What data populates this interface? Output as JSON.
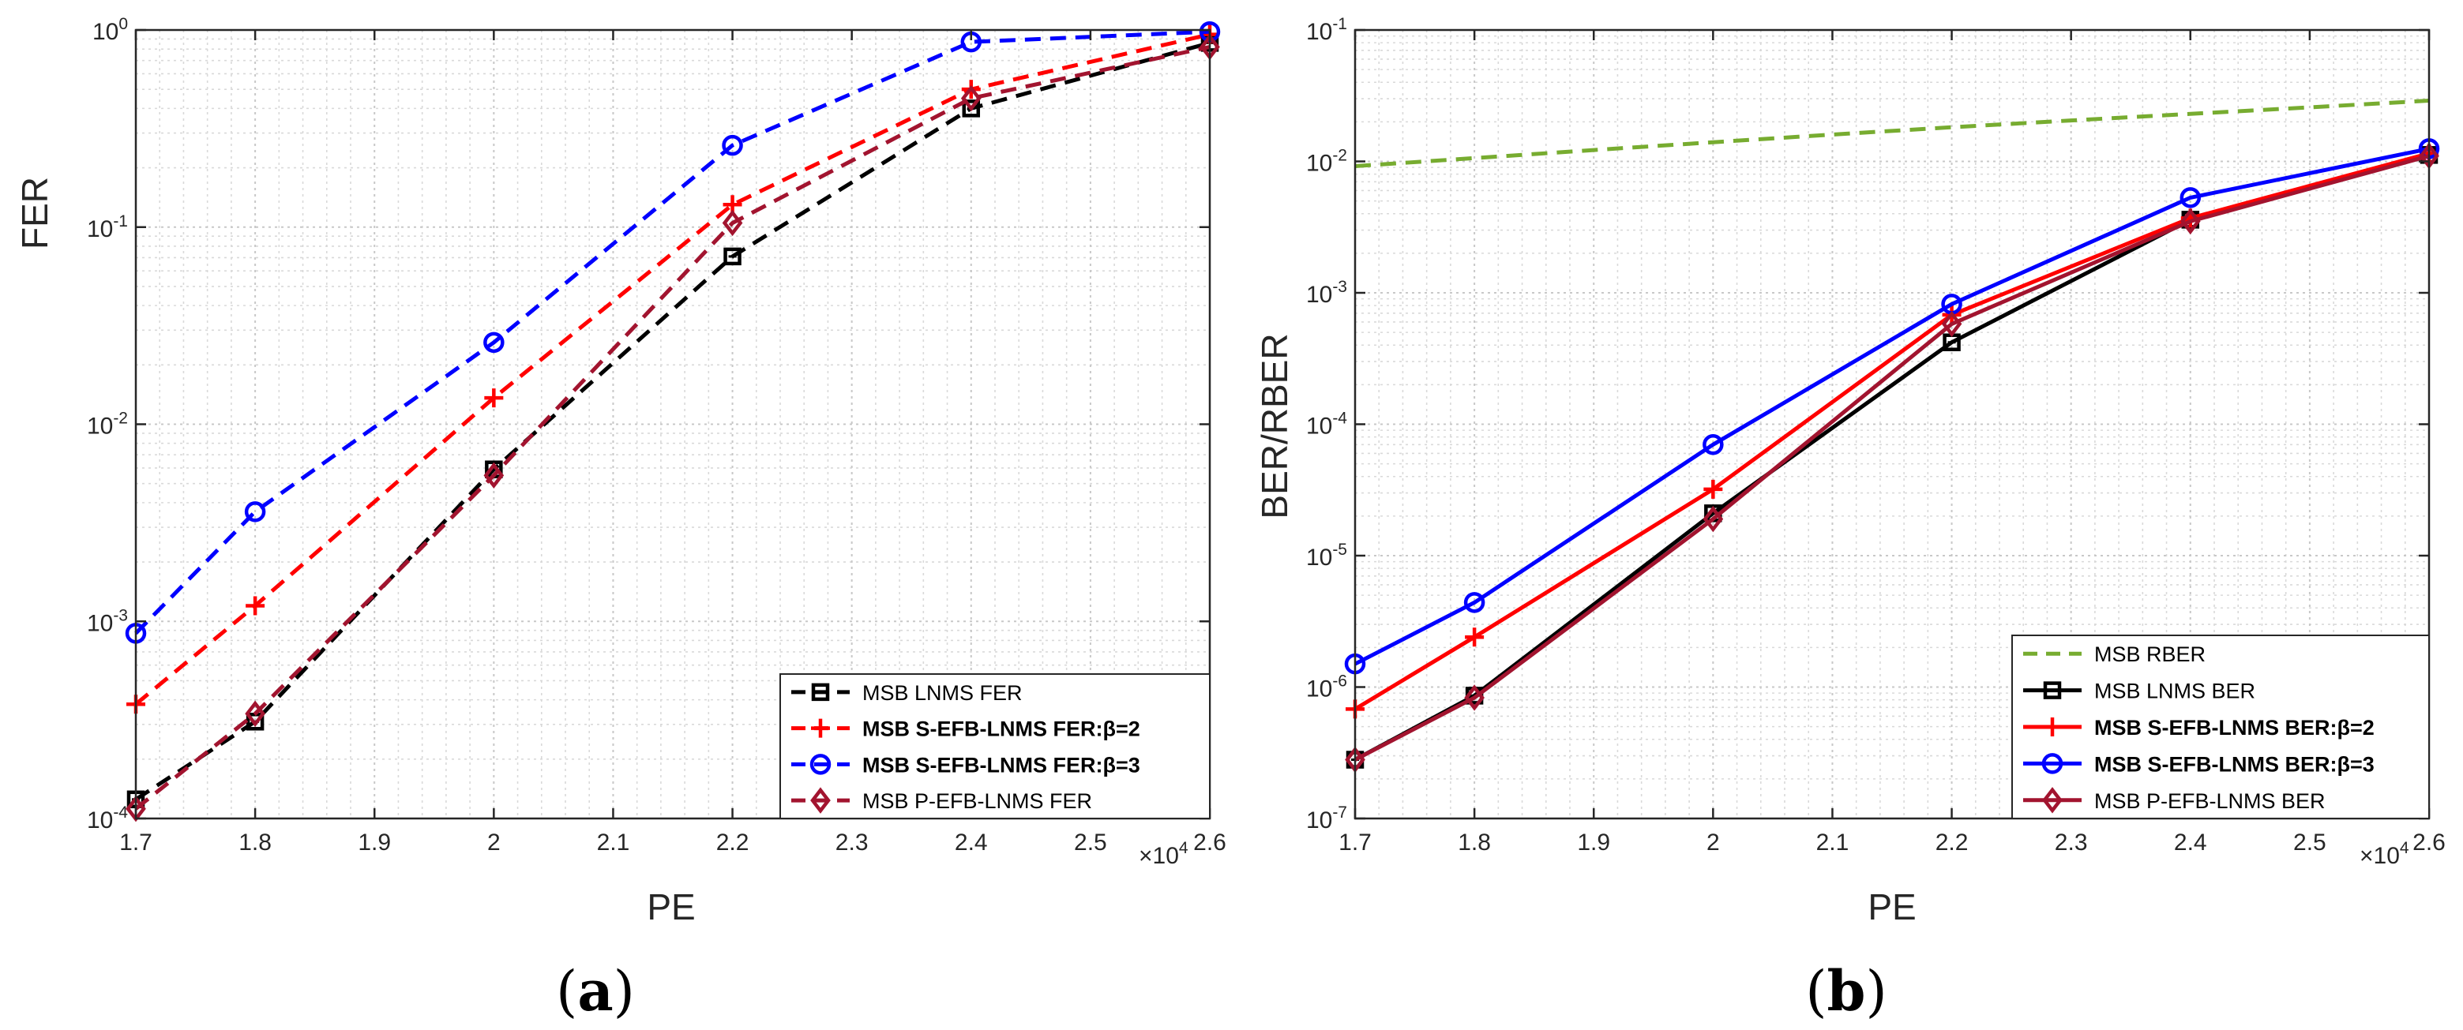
{
  "chart_data": [
    {
      "type": "line",
      "panel_label": "a",
      "caption": {
        "open": "(",
        "letter": "a",
        "close": ")"
      },
      "xlabel": "PE",
      "ylabel": "FER",
      "x_multiplier": {
        "base": "×10",
        "exp": "4"
      },
      "xlim": [
        1.7,
        2.6
      ],
      "ylim": [
        0.0001,
        1
      ],
      "yscale": "log",
      "grid": true,
      "legend_position": "bottom-right",
      "x_ticks": [
        "1.7",
        "1.8",
        "1.9",
        "2",
        "2.1",
        "2.2",
        "2.3",
        "2.4",
        "2.5",
        "2.6"
      ],
      "y_ticks": [
        {
          "base": "10",
          "exp": "-4"
        },
        {
          "base": "10",
          "exp": "-3"
        },
        {
          "base": "10",
          "exp": "-2"
        },
        {
          "base": "10",
          "exp": "-1"
        },
        {
          "base": "10",
          "exp": "0"
        }
      ],
      "series": [
        {
          "name": "MSB LNMS FER",
          "bold": false,
          "color": "#000000",
          "dash": "dashed",
          "marker": "square",
          "x": [
            1.7,
            1.8,
            2.0,
            2.2,
            2.4,
            2.6
          ],
          "y": [
            0.000125,
            0.00031,
            0.0059,
            0.071,
            0.4,
            0.86
          ]
        },
        {
          "name": "MSB S-EFB-LNMS FER:β=2",
          "bold": true,
          "color": "#ff0000",
          "dash": "dashed",
          "marker": "plus",
          "x": [
            1.7,
            1.8,
            2.0,
            2.2,
            2.4,
            2.6
          ],
          "y": [
            0.00038,
            0.0012,
            0.0136,
            0.13,
            0.5,
            0.95
          ]
        },
        {
          "name": "MSB S-EFB-LNMS FER:β=3",
          "bold": true,
          "color": "#0000ff",
          "dash": "dashed",
          "marker": "circle",
          "x": [
            1.7,
            1.8,
            2.0,
            2.2,
            2.4,
            2.6
          ],
          "y": [
            0.00087,
            0.0036,
            0.026,
            0.26,
            0.87,
            0.98
          ]
        },
        {
          "name": "MSB P-EFB-LNMS FER",
          "bold": false,
          "color": "#a2142f",
          "dash": "dashed",
          "marker": "diamond",
          "x": [
            1.7,
            1.8,
            2.0,
            2.2,
            2.4,
            2.6
          ],
          "y": [
            0.000112,
            0.00034,
            0.0055,
            0.105,
            0.45,
            0.82
          ]
        }
      ]
    },
    {
      "type": "line",
      "panel_label": "b",
      "caption": {
        "open": "(",
        "letter": "b",
        "close": ")"
      },
      "xlabel": "PE",
      "ylabel": "BER/RBER",
      "x_multiplier": {
        "base": "×10",
        "exp": "4"
      },
      "xlim": [
        1.7,
        2.6
      ],
      "ylim": [
        1e-07,
        0.1
      ],
      "yscale": "log",
      "grid": true,
      "legend_position": "bottom-right",
      "x_ticks": [
        "1.7",
        "1.8",
        "1.9",
        "2",
        "2.1",
        "2.2",
        "2.3",
        "2.4",
        "2.5",
        "2.6"
      ],
      "y_ticks": [
        {
          "base": "10",
          "exp": "-7"
        },
        {
          "base": "10",
          "exp": "-6"
        },
        {
          "base": "10",
          "exp": "-5"
        },
        {
          "base": "10",
          "exp": "-4"
        },
        {
          "base": "10",
          "exp": "-3"
        },
        {
          "base": "10",
          "exp": "-2"
        },
        {
          "base": "10",
          "exp": "-1"
        }
      ],
      "series": [
        {
          "name": "MSB RBER",
          "bold": false,
          "color": "#77ac30",
          "dash": "dashed",
          "marker": "none",
          "x": [
            1.7,
            1.8,
            1.9,
            2.0,
            2.1,
            2.2,
            2.3,
            2.4,
            2.5,
            2.6
          ],
          "y": [
            0.0092,
            0.0106,
            0.0122,
            0.014,
            0.016,
            0.0182,
            0.0205,
            0.023,
            0.0258,
            0.029
          ]
        },
        {
          "name": "MSB LNMS BER",
          "bold": false,
          "color": "#000000",
          "dash": "solid",
          "marker": "square",
          "x": [
            1.7,
            1.8,
            2.0,
            2.2,
            2.4,
            2.6
          ],
          "y": [
            2.8e-07,
            8.6e-07,
            2.1e-05,
            0.00042,
            0.0036,
            0.0112
          ]
        },
        {
          "name": "MSB S-EFB-LNMS BER:β=2",
          "bold": true,
          "color": "#ff0000",
          "dash": "solid",
          "marker": "plus",
          "x": [
            1.7,
            1.8,
            2.0,
            2.2,
            2.4,
            2.6
          ],
          "y": [
            6.8e-07,
            2.4e-06,
            3.2e-05,
            0.00068,
            0.0037,
            0.0115
          ]
        },
        {
          "name": "MSB S-EFB-LNMS BER:β=3",
          "bold": true,
          "color": "#0000ff",
          "dash": "solid",
          "marker": "circle",
          "x": [
            1.7,
            1.8,
            2.0,
            2.2,
            2.4,
            2.6
          ],
          "y": [
            1.5e-06,
            4.4e-06,
            7e-05,
            0.00082,
            0.0053,
            0.0125
          ]
        },
        {
          "name": "MSB P-EFB-LNMS BER",
          "bold": false,
          "color": "#a2142f",
          "dash": "solid",
          "marker": "diamond",
          "x": [
            1.7,
            1.8,
            2.0,
            2.2,
            2.4,
            2.6
          ],
          "y": [
            2.8e-07,
            8.3e-07,
            1.9e-05,
            0.00058,
            0.0035,
            0.011
          ]
        }
      ]
    }
  ]
}
